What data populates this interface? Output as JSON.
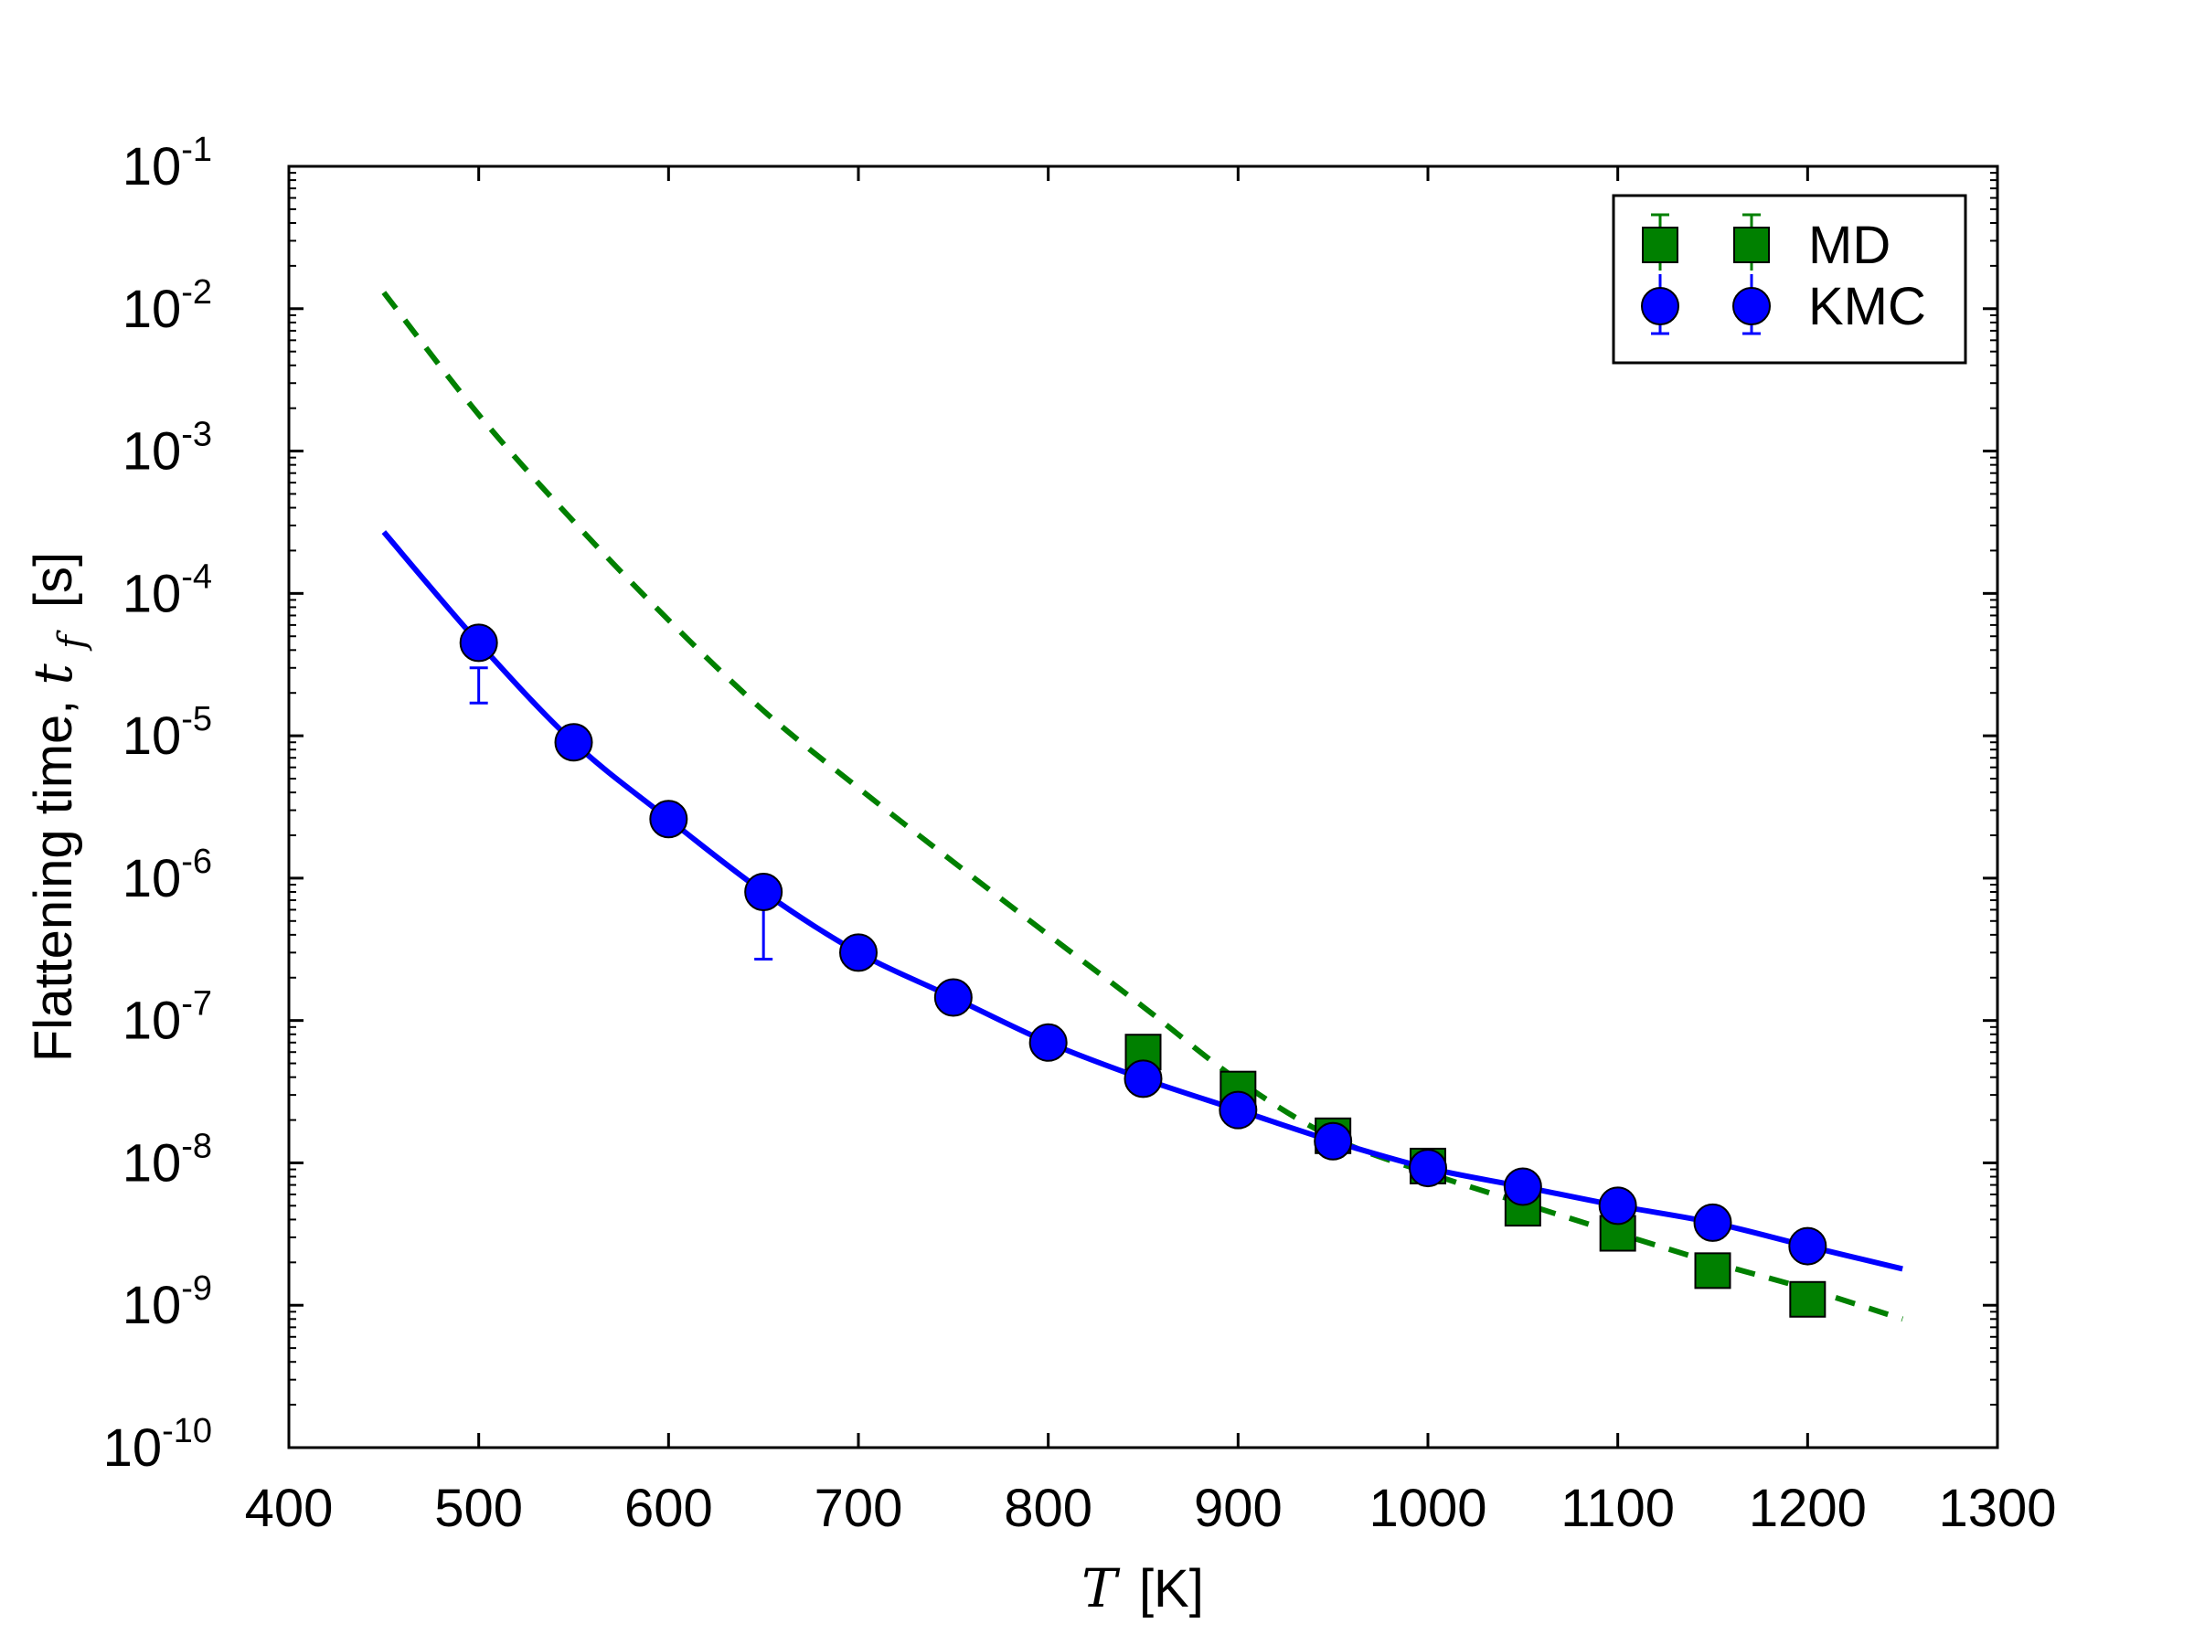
{
  "chart_data": {
    "type": "scatter",
    "xlabel": {
      "symbol": "T",
      "unit": "[K]"
    },
    "ylabel": {
      "text": "Flattening time, ",
      "symbol": "t",
      "subscript": "f",
      "unit": "[s]"
    },
    "xlim": [
      400,
      1300
    ],
    "ylim_log10": [
      -10,
      -1
    ],
    "yscale": "log",
    "x_ticks": [
      400,
      500,
      600,
      700,
      800,
      900,
      1000,
      1100,
      1200,
      1300
    ],
    "y_tick_exponents": [
      -10,
      -9,
      -8,
      -7,
      -6,
      -5,
      -4,
      -3,
      -2,
      -1
    ],
    "y_tick_base": "10",
    "legend_position": "top-right",
    "series": [
      {
        "name": "MD",
        "color": "#008000",
        "marker": "square",
        "x": [
          850,
          900,
          950,
          1000,
          1050,
          1100,
          1150,
          1200
        ],
        "y": [
          6e-08,
          3.3e-08,
          1.55e-08,
          9.5e-09,
          4.8e-09,
          3.2e-09,
          1.75e-09,
          1.1e-09
        ],
        "fit": {
          "style": "dashed",
          "x": [
            450,
            500,
            550,
            600,
            650,
            700,
            750,
            800,
            850,
            900,
            950,
            1000,
            1050,
            1100,
            1150,
            1200,
            1250
          ],
          "y": [
            0.013,
            0.0018,
            0.00032,
            6.5e-05,
            1.5e-05,
            4.3e-06,
            1.3e-06,
            4e-07,
            1.25e-07,
            3.8e-08,
            1.5e-08,
            8.5e-09,
            5.2e-09,
            3.2e-09,
            2e-09,
            1.3e-09,
            8e-10
          ]
        }
      },
      {
        "name": "KMC",
        "color": "#0000ff",
        "marker": "circle",
        "x": [
          500,
          550,
          600,
          650,
          700,
          750,
          800,
          850,
          900,
          950,
          1000,
          1050,
          1100,
          1150,
          1200
        ],
        "y": [
          4.5e-05,
          9e-06,
          2.6e-06,
          8e-07,
          3e-07,
          1.45e-07,
          7e-08,
          3.9e-08,
          2.35e-08,
          1.42e-08,
          9.2e-09,
          6.8e-09,
          5e-09,
          3.8e-09,
          2.6e-09
        ],
        "y_err": [
          [
            1.7e-05,
            3e-05
          ],
          [
            0,
            0
          ],
          [
            0,
            0
          ],
          [
            2.7e-07,
            1e-06
          ],
          [
            0,
            0
          ],
          [
            0,
            0
          ],
          [
            0,
            0
          ],
          [
            0,
            0
          ],
          [
            0,
            0
          ],
          [
            0,
            0
          ],
          [
            0,
            0
          ],
          [
            0,
            0
          ],
          [
            0,
            0
          ],
          [
            0,
            0
          ],
          [
            0,
            0
          ]
        ],
        "fit": {
          "style": "solid",
          "x": [
            450,
            500,
            550,
            600,
            650,
            700,
            750,
            800,
            850,
            900,
            950,
            1000,
            1050,
            1100,
            1150,
            1200,
            1250
          ],
          "y": [
            0.00027,
            4.5e-05,
            9e-06,
            2.6e-06,
            8e-07,
            3e-07,
            1.45e-07,
            7e-08,
            3.9e-08,
            2.35e-08,
            1.42e-08,
            9.2e-09,
            6.8e-09,
            5e-09,
            3.8e-09,
            2.6e-09,
            1.8e-09
          ]
        }
      }
    ]
  }
}
